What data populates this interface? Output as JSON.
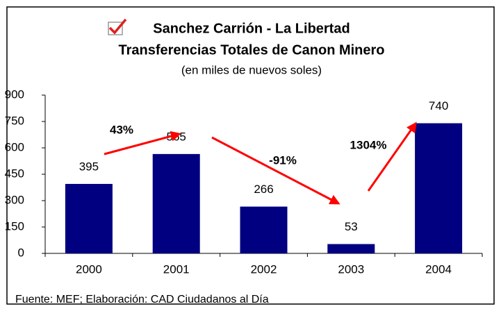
{
  "chart_data": {
    "type": "bar",
    "title": "Sanchez Carrión - La Libertad",
    "subtitle": "Transferencias Totales de Canon Minero",
    "unit_note": "(en miles de nuevos soles)",
    "categories": [
      "2000",
      "2001",
      "2002",
      "2003",
      "2004"
    ],
    "values": [
      395,
      565,
      266,
      53,
      740
    ],
    "color": "#000080",
    "ylim": [
      0,
      900
    ],
    "yticks": [
      0,
      150,
      300,
      450,
      600,
      750,
      900
    ],
    "annotations": [
      {
        "text": "43%"
      },
      {
        "text": "-91%"
      },
      {
        "text": "1304%"
      }
    ],
    "arrow_color": "#ff0000",
    "source": "Fuente: MEF; Elaboración: CAD Ciudadanos al Día"
  }
}
